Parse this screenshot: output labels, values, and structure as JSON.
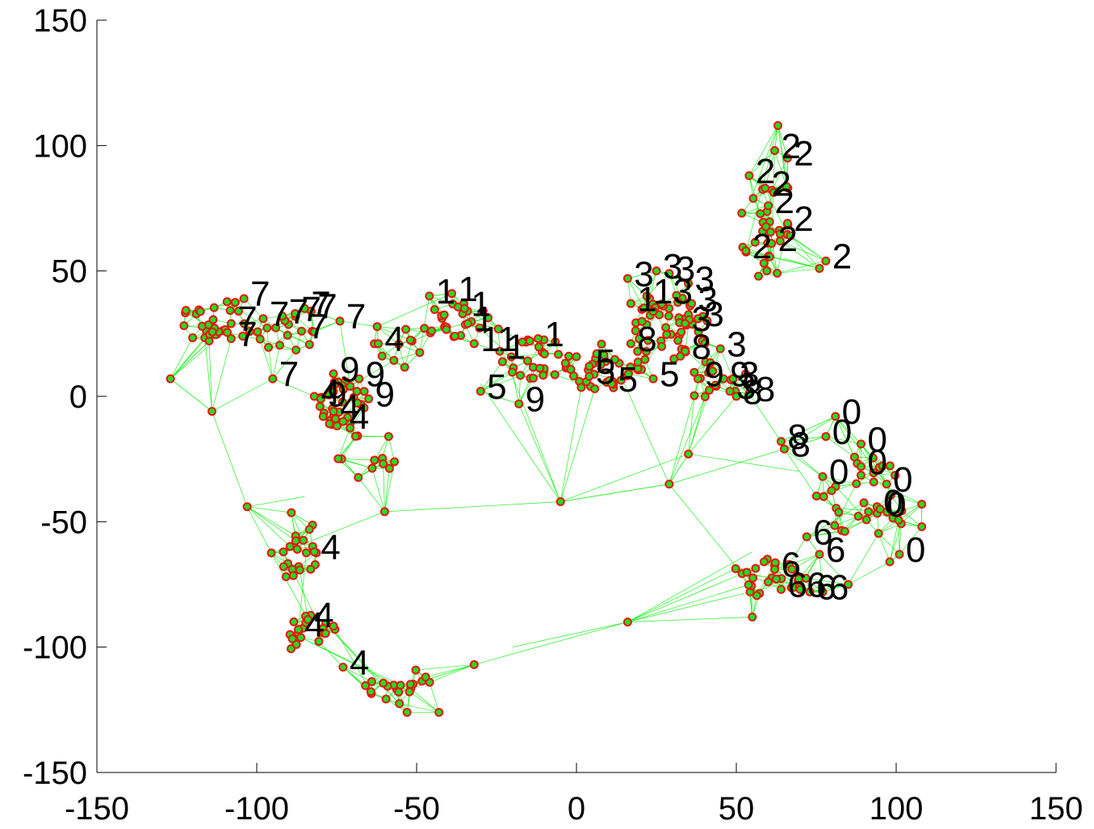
{
  "chart_data": {
    "type": "scatter",
    "title": "",
    "xlabel": "",
    "ylabel": "",
    "xlim": [
      -150,
      150
    ],
    "ylim": [
      -150,
      150
    ],
    "xticks": [
      "-150",
      "-100",
      "-50",
      "0",
      "50",
      "100",
      "150"
    ],
    "yticks": [
      "150",
      "100",
      "50",
      "0",
      "-50",
      "-100",
      "-150"
    ],
    "grid": false,
    "legend": "none",
    "colors": {
      "edges": "#22ee22",
      "node_edge": "#ee1111",
      "node_fill": "#22dd22",
      "label": "#000000"
    },
    "labels": [
      {
        "text": "2",
        "x": 64,
        "y": 95
      },
      {
        "text": "2",
        "x": 68,
        "y": 92
      },
      {
        "text": "2",
        "x": 56,
        "y": 85
      },
      {
        "text": "2",
        "x": 61,
        "y": 80
      },
      {
        "text": "2",
        "x": 62,
        "y": 73
      },
      {
        "text": "2",
        "x": 68,
        "y": 66
      },
      {
        "text": "2",
        "x": 55,
        "y": 55
      },
      {
        "text": "2",
        "x": 63,
        "y": 58
      },
      {
        "text": "2",
        "x": 80,
        "y": 51
      },
      {
        "text": "3",
        "x": 18,
        "y": 44
      },
      {
        "text": "3",
        "x": 27,
        "y": 47
      },
      {
        "text": "3",
        "x": 31,
        "y": 46
      },
      {
        "text": "3",
        "x": 37,
        "y": 42
      },
      {
        "text": "3",
        "x": 38,
        "y": 34
      },
      {
        "text": "3",
        "x": 40,
        "y": 28
      },
      {
        "text": "3",
        "x": 36,
        "y": 26
      },
      {
        "text": "3",
        "x": 47,
        "y": 16
      },
      {
        "text": "3",
        "x": 51,
        "y": 4
      },
      {
        "text": "3",
        "x": 50,
        "y": -1
      },
      {
        "text": "1",
        "x": 19,
        "y": 34
      },
      {
        "text": "13",
        "x": 24,
        "y": 37
      },
      {
        "text": "1",
        "x": -44,
        "y": 37
      },
      {
        "text": "1",
        "x": -37,
        "y": 38
      },
      {
        "text": "1",
        "x": -33,
        "y": 32
      },
      {
        "text": "1",
        "x": -32,
        "y": 26
      },
      {
        "text": "11",
        "x": -30,
        "y": 18
      },
      {
        "text": "1",
        "x": -22,
        "y": 15
      },
      {
        "text": "1",
        "x": -10,
        "y": 20
      },
      {
        "text": "7",
        "x": -102,
        "y": 36
      },
      {
        "text": "7",
        "x": -106,
        "y": 26
      },
      {
        "text": "7",
        "x": -106,
        "y": 20
      },
      {
        "text": "7",
        "x": -96,
        "y": 28
      },
      {
        "text": "7",
        "x": -90,
        "y": 29
      },
      {
        "text": "7",
        "x": -86,
        "y": 30
      },
      {
        "text": "7",
        "x": -83,
        "y": 32
      },
      {
        "text": "7",
        "x": -81,
        "y": 31
      },
      {
        "text": "7",
        "x": -84,
        "y": 23
      },
      {
        "text": "7",
        "x": -72,
        "y": 27
      },
      {
        "text": "7",
        "x": -93,
        "y": 4
      },
      {
        "text": "4",
        "x": -60,
        "y": 18
      },
      {
        "text": "4",
        "x": -80,
        "y": -3
      },
      {
        "text": "4",
        "x": -74,
        "y": -9
      },
      {
        "text": "4",
        "x": -71,
        "y": -13
      },
      {
        "text": "4",
        "x": -80,
        "y": -65
      },
      {
        "text": "4",
        "x": -82,
        "y": -92
      },
      {
        "text": "4",
        "x": -85,
        "y": -96
      },
      {
        "text": "4",
        "x": -71,
        "y": -111
      },
      {
        "text": "9",
        "x": -74,
        "y": 6
      },
      {
        "text": "9",
        "x": -66,
        "y": 4
      },
      {
        "text": "9",
        "x": -63,
        "y": -4
      },
      {
        "text": "9",
        "x": -16,
        "y": -6
      },
      {
        "text": "9",
        "x": 40,
        "y": 4
      },
      {
        "text": "9",
        "x": 48,
        "y": 4
      },
      {
        "text": "9",
        "x": -78,
        "y": -4
      },
      {
        "text": "5",
        "x": -28,
        "y": -1
      },
      {
        "text": "5",
        "x": 6,
        "y": 9
      },
      {
        "text": "5",
        "x": 6,
        "y": 5
      },
      {
        "text": "5",
        "x": 13,
        "y": 2
      },
      {
        "text": "5",
        "x": 26,
        "y": 4
      },
      {
        "text": "8",
        "x": 19,
        "y": 18
      },
      {
        "text": "8",
        "x": 36,
        "y": 15
      },
      {
        "text": "8",
        "x": 52,
        "y": -3
      },
      {
        "text": "8",
        "x": 56,
        "y": -2
      },
      {
        "text": "8",
        "x": 66,
        "y": -21
      },
      {
        "text": "8",
        "x": 67,
        "y": -24
      },
      {
        "text": "0",
        "x": 83,
        "y": -11
      },
      {
        "text": "0",
        "x": 80,
        "y": -19
      },
      {
        "text": "0",
        "x": 91,
        "y": -22
      },
      {
        "text": "0",
        "x": 91,
        "y": -31
      },
      {
        "text": "0",
        "x": 79,
        "y": -35
      },
      {
        "text": "0",
        "x": 99,
        "y": -38
      },
      {
        "text": "0",
        "x": 96,
        "y": -47
      },
      {
        "text": "0",
        "x": 97,
        "y": -48
      },
      {
        "text": "0",
        "x": 103,
        "y": -66
      },
      {
        "text": "6",
        "x": 74,
        "y": -59
      },
      {
        "text": "6",
        "x": 78,
        "y": -66
      },
      {
        "text": "6",
        "x": 64,
        "y": -72
      },
      {
        "text": "6",
        "x": 66,
        "y": -80
      },
      {
        "text": "6",
        "x": 72,
        "y": -80
      },
      {
        "text": "6",
        "x": 75,
        "y": -81
      },
      {
        "text": "6",
        "x": 79,
        "y": -81
      }
    ],
    "clusters": [
      {
        "cx": -112,
        "cy": 30,
        "rx": 12,
        "ry": 9,
        "n": 30
      },
      {
        "cx": -90,
        "cy": 25,
        "rx": 10,
        "ry": 10,
        "n": 14
      },
      {
        "cx": -73,
        "cy": -3,
        "rx": 8,
        "ry": 10,
        "n": 32
      },
      {
        "cx": -55,
        "cy": 20,
        "rx": 12,
        "ry": 10,
        "n": 12
      },
      {
        "cx": -35,
        "cy": 30,
        "rx": 12,
        "ry": 8,
        "n": 22
      },
      {
        "cx": -12,
        "cy": 15,
        "rx": 12,
        "ry": 8,
        "n": 26
      },
      {
        "cx": 8,
        "cy": 12,
        "rx": 14,
        "ry": 10,
        "n": 36
      },
      {
        "cx": 30,
        "cy": 28,
        "rx": 12,
        "ry": 14,
        "n": 48
      },
      {
        "cx": 60,
        "cy": 68,
        "rx": 10,
        "ry": 22,
        "n": 30
      },
      {
        "cx": 45,
        "cy": 5,
        "rx": 10,
        "ry": 10,
        "n": 14
      },
      {
        "cx": 90,
        "cy": -40,
        "rx": 15,
        "ry": 17,
        "n": 32
      },
      {
        "cx": 60,
        "cy": -72,
        "rx": 12,
        "ry": 8,
        "n": 26
      },
      {
        "cx": -65,
        "cy": -22,
        "rx": 10,
        "ry": 12,
        "n": 12
      },
      {
        "cx": -88,
        "cy": -60,
        "rx": 8,
        "ry": 15,
        "n": 22
      },
      {
        "cx": -83,
        "cy": -95,
        "rx": 8,
        "ry": 10,
        "n": 18
      },
      {
        "cx": -55,
        "cy": -115,
        "rx": 12,
        "ry": 8,
        "n": 20
      }
    ],
    "outliers": [
      {
        "x": -127,
        "y": 7
      },
      {
        "x": -114,
        "y": -6
      },
      {
        "x": -103,
        "y": -44
      },
      {
        "x": -5,
        "y": -42
      },
      {
        "x": 16,
        "y": -90
      },
      {
        "x": 29,
        "y": -35
      },
      {
        "x": 35,
        "y": -23
      },
      {
        "x": 63,
        "y": 108
      },
      {
        "x": 76,
        "y": 51
      },
      {
        "x": 108,
        "y": -43
      },
      {
        "x": 108,
        "y": -52
      },
      {
        "x": -43,
        "y": -126
      },
      {
        "x": -53,
        "y": -126
      },
      {
        "x": -32,
        "y": -107
      },
      {
        "x": 55,
        "y": -88
      },
      {
        "x": -60,
        "y": -46
      },
      {
        "x": 98,
        "y": -66
      },
      {
        "x": 85,
        "y": -75
      }
    ]
  }
}
